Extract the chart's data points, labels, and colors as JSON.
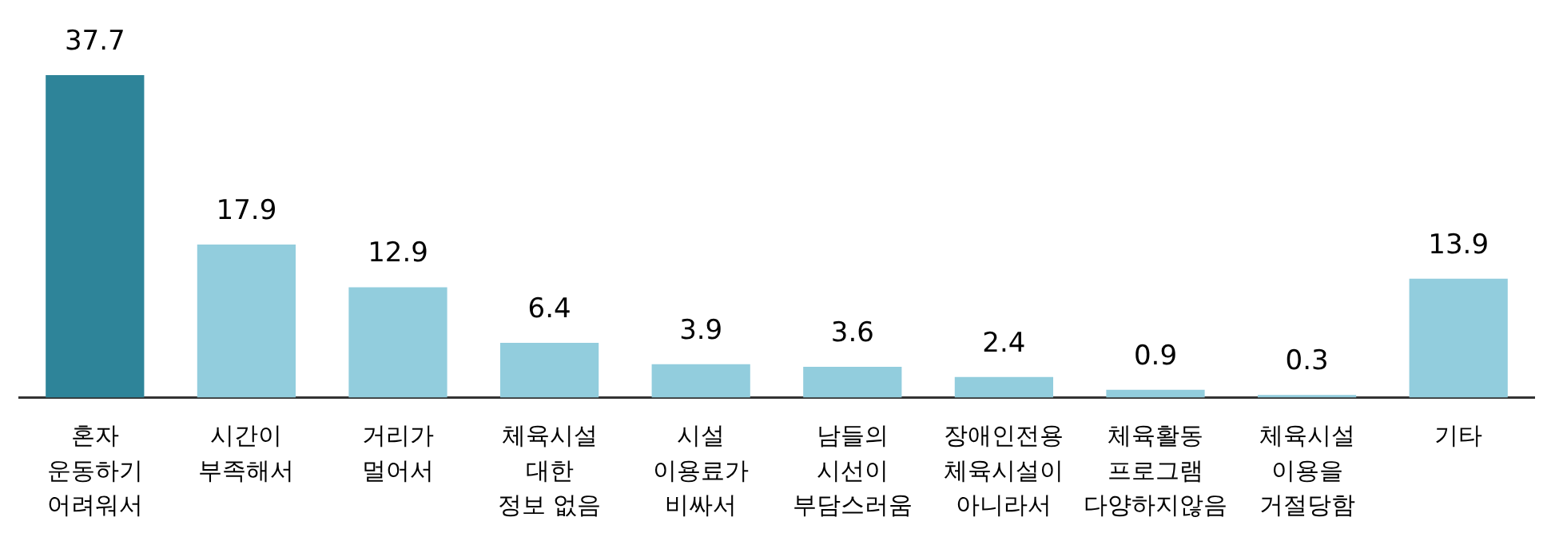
{
  "chart_data": {
    "type": "bar",
    "categories": [
      "혼자\n운동하기\n어려워서",
      "시간이\n부족해서",
      "거리가\n멀어서",
      "체육시설\n대한\n정보 없음",
      "시설\n이용료가\n비싸서",
      "남들의\n시선이\n부담스러움",
      "장애인전용\n체육시설이\n아니라서",
      "체육활동\n프로그램\n다양하지않음",
      "체육시설\n이용을\n거절당함",
      "기타"
    ],
    "values": [
      37.7,
      17.9,
      12.9,
      6.4,
      3.9,
      3.6,
      2.4,
      0.9,
      0.3,
      13.9
    ],
    "colors": [
      "#2e8499",
      "#92cddd",
      "#92cddd",
      "#92cddd",
      "#92cddd",
      "#92cddd",
      "#92cddd",
      "#92cddd",
      "#92cddd",
      "#92cddd"
    ],
    "data_labels": true,
    "tick_labels": "x",
    "grid": false,
    "legend": false
  }
}
